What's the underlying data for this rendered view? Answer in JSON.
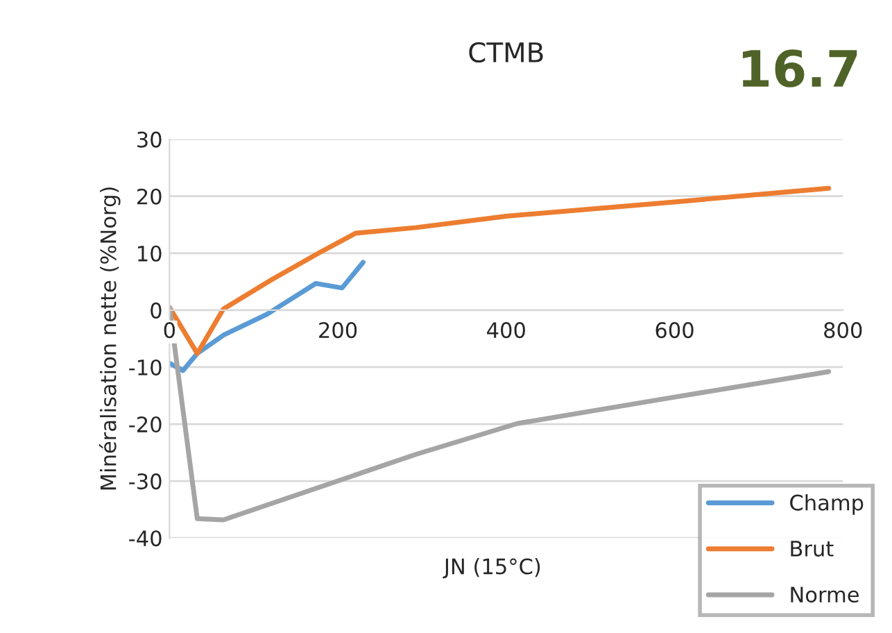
{
  "chart_data": {
    "type": "line",
    "title": "CTMB",
    "xlabel": "JN (15°C)",
    "ylabel": "Minéralisation nette (%Norg)",
    "annotations": [
      "16.7"
    ],
    "xlim": [
      0,
      800
    ],
    "xticks": [
      0,
      200,
      400,
      600,
      800
    ],
    "ylim": [
      -40,
      30
    ],
    "yticks": [
      -40,
      -30,
      -20,
      -10,
      0,
      10,
      20,
      30
    ],
    "grid": "y",
    "legend": "bottom right",
    "line_style": "solid",
    "marker": "none",
    "series": [
      {
        "name": "Champ",
        "color": "#5b9bd5",
        "x": [
          0,
          16,
          33,
          64,
          116,
          174,
          205,
          230
        ],
        "values": [
          -9.3,
          -10.6,
          -7.6,
          -4.4,
          -0.7,
          4.7,
          3.9,
          8.4
        ]
      },
      {
        "name": "Brut",
        "color": "#ed7d31",
        "x": [
          0,
          33,
          64,
          122,
          177,
          221,
          293,
          400,
          600,
          783
        ],
        "values": [
          0.5,
          -7.6,
          0.2,
          5.4,
          10,
          13.5,
          14.5,
          16.5,
          19,
          21.4
        ]
      },
      {
        "name": "Norme",
        "color": "#a5a5a5",
        "x": [
          0,
          33,
          64,
          293,
          413,
          590,
          783
        ],
        "values": [
          0.5,
          -36.6,
          -36.8,
          -25.3,
          -19.9,
          -15.5,
          -10.8
        ]
      }
    ]
  }
}
